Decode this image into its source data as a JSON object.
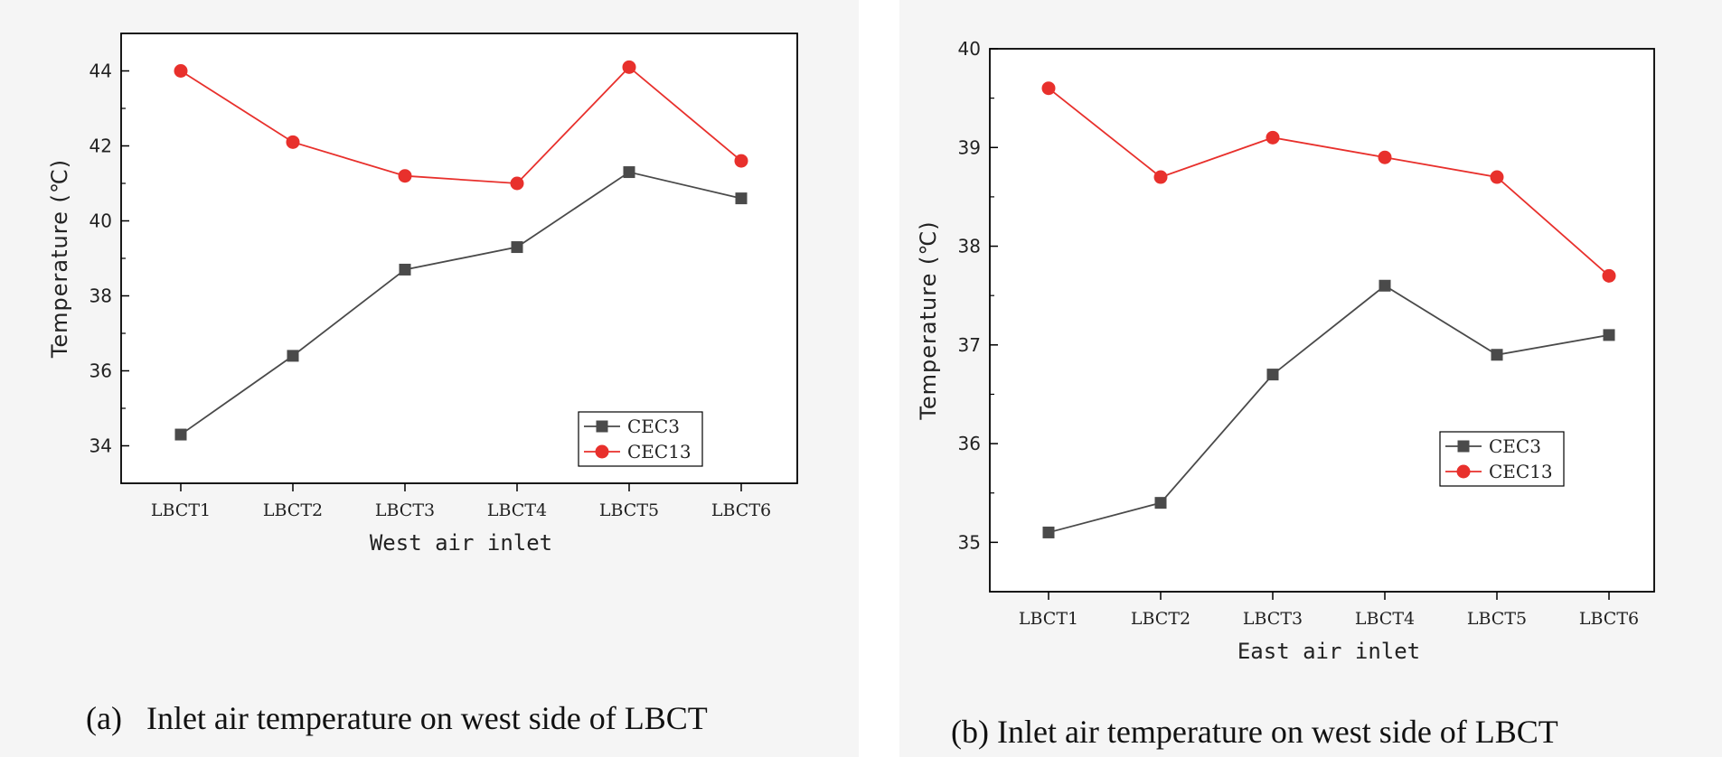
{
  "colors": {
    "CEC3": "#4a4a4a",
    "CEC13": "#e8302c",
    "panel_bg": "#f5f5f5"
  },
  "chart_data": [
    {
      "id": "a",
      "type": "line",
      "title": "",
      "caption": "(a)   Inlet air temperature on west side of LBCT",
      "xlabel": "West air inlet",
      "ylabel": "Temperature (℃)",
      "categories": [
        "LBCT1",
        "LBCT2",
        "LBCT3",
        "LBCT4",
        "LBCT5",
        "LBCT6"
      ],
      "ylim": [
        33,
        45
      ],
      "yticks": [
        34,
        36,
        38,
        40,
        42,
        44
      ],
      "legend_position": "right-lower",
      "series": [
        {
          "name": "CEC3",
          "marker": "square",
          "values": [
            34.3,
            36.4,
            38.7,
            39.3,
            41.3,
            40.6
          ]
        },
        {
          "name": "CEC13",
          "marker": "circle",
          "values": [
            44.0,
            42.1,
            41.2,
            41.0,
            44.1,
            41.6
          ]
        }
      ]
    },
    {
      "id": "b",
      "type": "line",
      "title": "",
      "caption": "(b) Inlet air temperature on west side of LBCT",
      "xlabel": "East air inlet",
      "ylabel": "Temperature (℃)",
      "categories": [
        "LBCT1",
        "LBCT2",
        "LBCT3",
        "LBCT4",
        "LBCT5",
        "LBCT6"
      ],
      "ylim": [
        34.5,
        40
      ],
      "yticks": [
        35,
        36,
        37,
        38,
        39,
        40
      ],
      "legend_position": "right-lower",
      "series": [
        {
          "name": "CEC3",
          "marker": "square",
          "values": [
            35.1,
            35.4,
            36.7,
            37.6,
            36.9,
            37.1
          ]
        },
        {
          "name": "CEC13",
          "marker": "circle",
          "values": [
            39.6,
            38.7,
            39.1,
            38.9,
            38.7,
            37.7
          ]
        }
      ]
    }
  ]
}
